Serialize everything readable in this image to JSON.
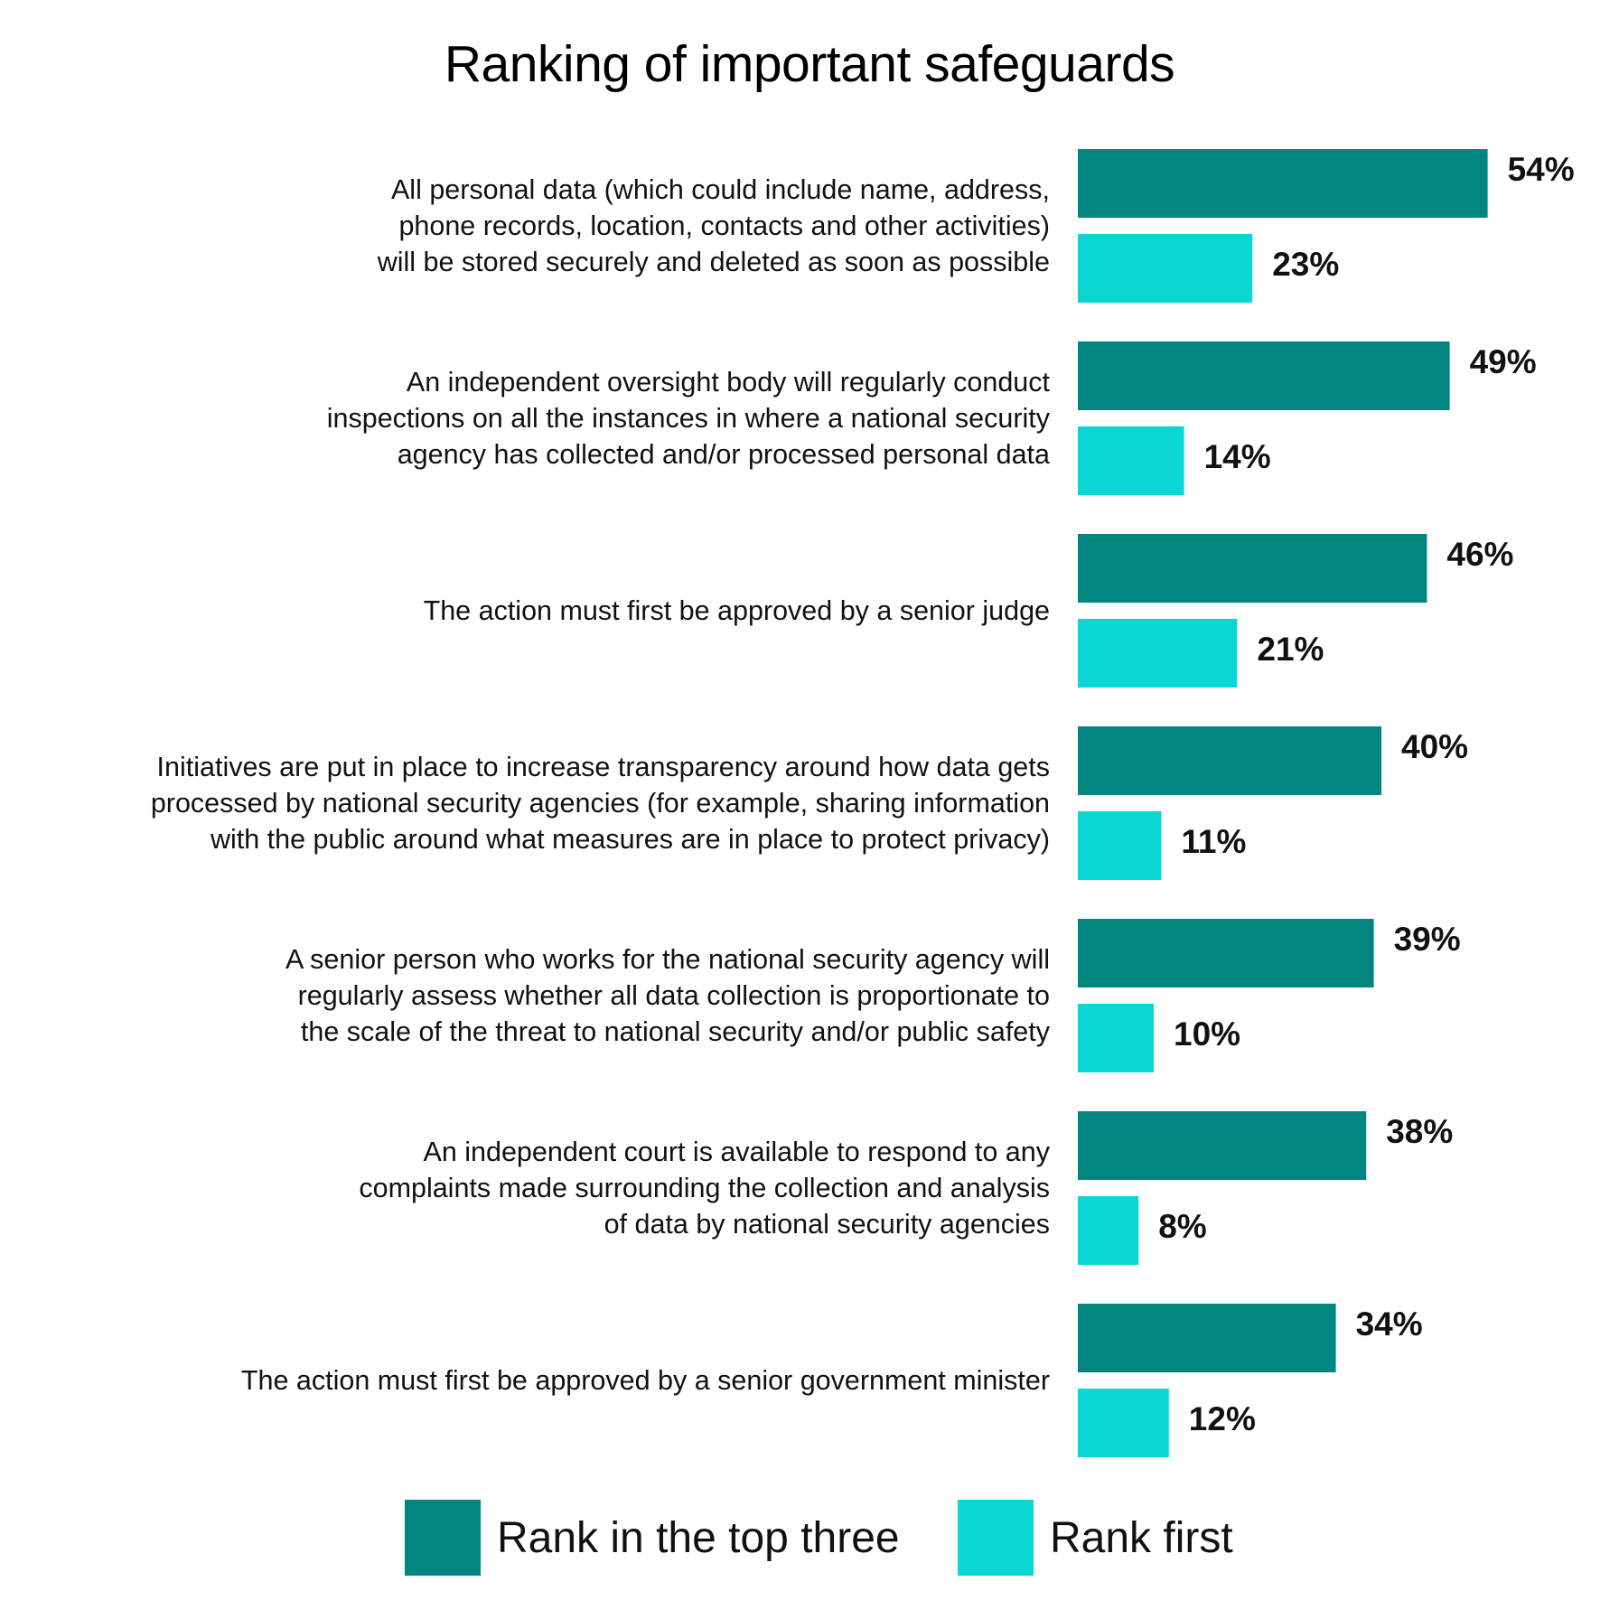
{
  "chart_data": {
    "type": "bar",
    "orientation": "horizontal",
    "title": "Ranking of important safeguards",
    "xlabel": "",
    "ylabel": "",
    "xlim": [
      0,
      54
    ],
    "grid": false,
    "legend_position": "bottom",
    "categories": [
      [
        "All personal data (which could include name, address,",
        "phone records, location, contacts and other activities)",
        "will be stored securely and deleted as soon as possible"
      ],
      [
        "An independent oversight body will regularly conduct",
        "inspections on all the instances in where a national security",
        "agency has collected and/or processed personal data"
      ],
      [
        "The action must first be approved by a senior judge"
      ],
      [
        "Initiatives are put in place to increase transparency around how data gets",
        "processed by national security agencies (for example, sharing information",
        "with the public around what measures are in place to protect privacy)"
      ],
      [
        "A senior person who works for the national security agency will",
        "regularly assess whether all data collection is proportionate to",
        "the scale of the threat to national security and/or public safety"
      ],
      [
        "An independent court is available to respond to any",
        "complaints made surrounding the collection and analysis",
        "of data by national security agencies"
      ],
      [
        "The action must first be approved by a senior government minister"
      ]
    ],
    "series": [
      {
        "name": "Rank in the top three",
        "color": "#008580",
        "values": [
          54,
          49,
          46,
          40,
          39,
          38,
          34
        ],
        "labels": [
          "54%",
          "49%",
          "46%",
          "40%",
          "39%",
          "38%",
          "34%"
        ]
      },
      {
        "name": "Rank first",
        "color": "#0ad7d3",
        "values": [
          23,
          14,
          21,
          11,
          10,
          8,
          12
        ],
        "labels": [
          "23%",
          "14%",
          "21%",
          "11%",
          "10%",
          "8%",
          "12%"
        ]
      }
    ]
  }
}
